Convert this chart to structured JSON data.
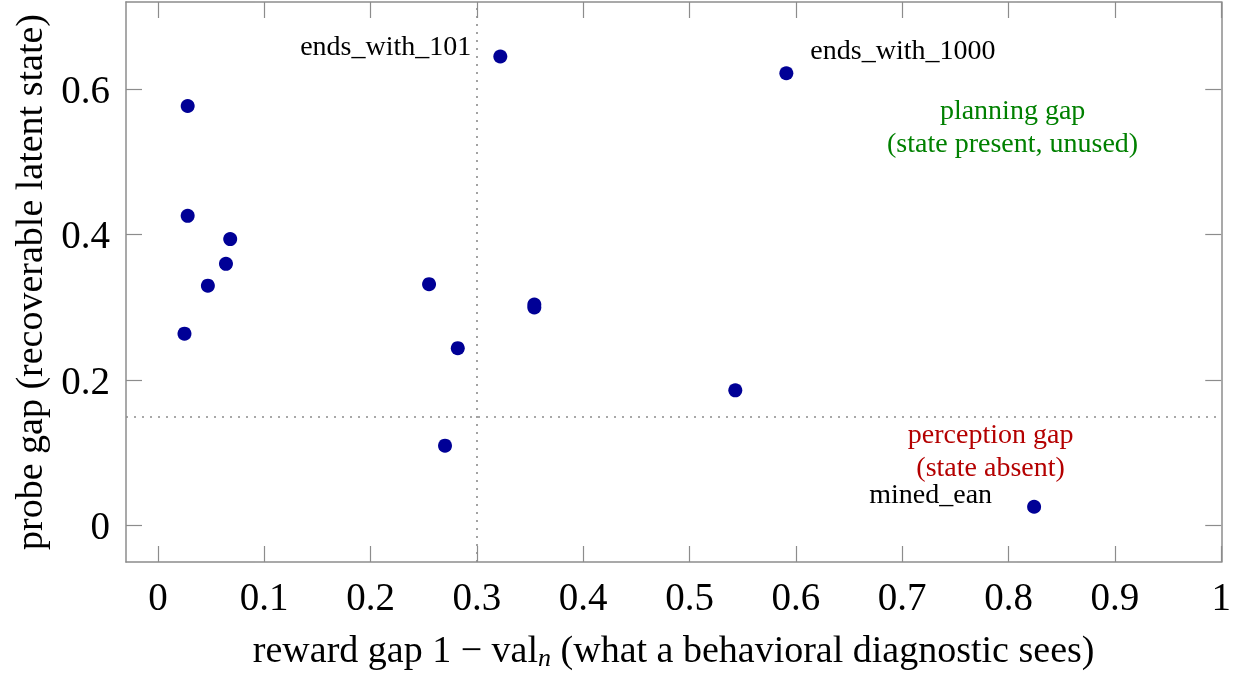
{
  "chart_data": {
    "type": "scatter",
    "xlabel": "reward gap 1 − val$_{n}$ (what a behavioral diagnostic sees)",
    "ylabel": "probe gap (recoverable latent state)",
    "x": [
      0.025,
      0.028,
      0.028,
      0.047,
      0.064,
      0.068,
      0.255,
      0.27,
      0.282,
      0.322,
      0.354,
      0.354,
      0.543,
      0.591,
      0.824
    ],
    "values": [
      0.264,
      0.577,
      0.426,
      0.33,
      0.36,
      0.394,
      0.332,
      0.11,
      0.244,
      0.645,
      0.304,
      0.3,
      0.186,
      0.622,
      0.026
    ],
    "color": "#000096",
    "marker": "circle",
    "grid": false,
    "xlim": [
      -0.03,
      1
    ],
    "ylim": [
      -0.05,
      0.72
    ],
    "xticks": [
      0,
      0.1,
      0.2,
      0.3,
      0.4,
      0.5,
      0.6,
      0.7,
      0.8,
      0.9,
      1
    ],
    "yticks": [
      0,
      0.2,
      0.4,
      0.6
    ],
    "ref_lines": [
      {
        "axis": "x",
        "value": 0.3,
        "color": "#8c8c8c",
        "line_style": "dotted"
      },
      {
        "axis": "y",
        "value": 0.15,
        "color": "#8c8c8c",
        "line_style": "dotted"
      }
    ],
    "annotations": [
      {
        "text": "ends_with_101",
        "x": 0.322,
        "y": 0.645
      },
      {
        "text": "ends_with_1000",
        "x": 0.591,
        "y": 0.622
      },
      "planning gap\n(state present, unused)",
      "perception gap\n(state absent)",
      {
        "text": "mined_ean",
        "x": 0.824,
        "y": 0.026
      }
    ]
  }
}
